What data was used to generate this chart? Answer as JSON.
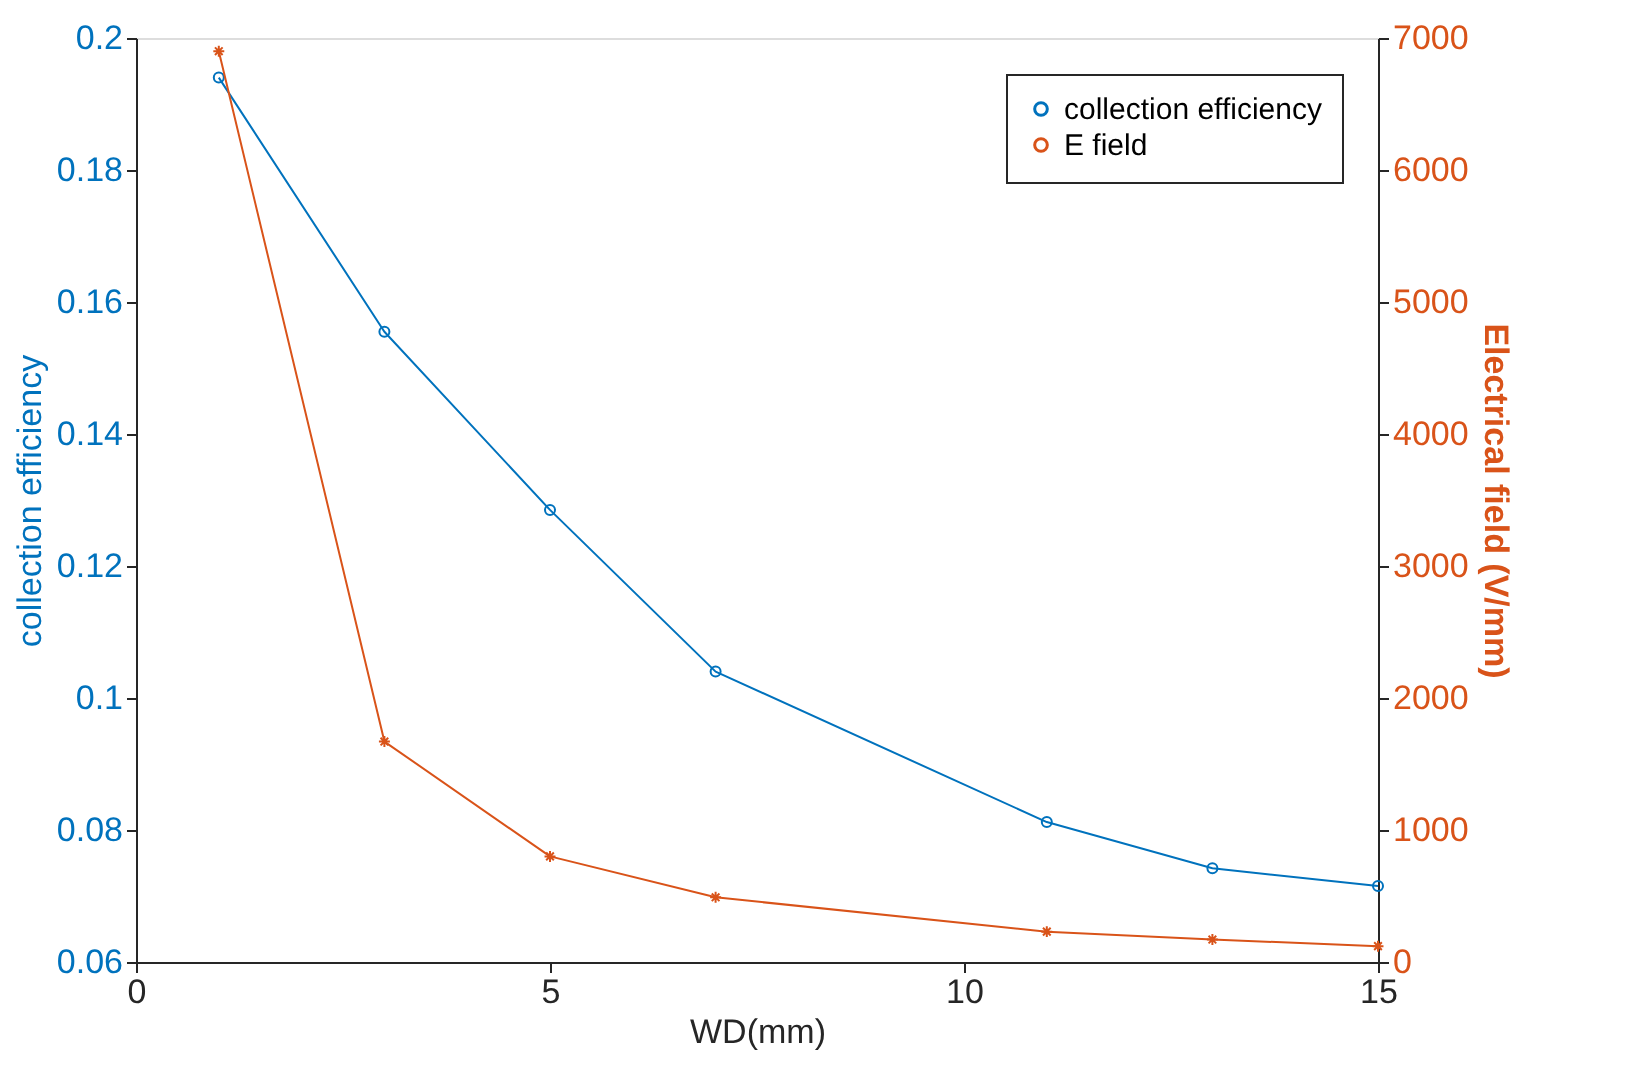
{
  "chart_data": {
    "type": "line",
    "xlabel": "WD(mm)",
    "ylabel": "collection efficiency",
    "y2label": "Electrical field (V/mm)",
    "x": [
      1,
      3,
      5,
      7,
      11,
      13,
      15
    ],
    "series": [
      {
        "name": "collection efficiency",
        "color": "#0072bd",
        "marker": "circle",
        "values": [
          0.194,
          0.1555,
          0.1285,
          0.104,
          0.0812,
          0.0742,
          0.0715
        ]
      },
      {
        "name": "E field",
        "color": "#d95319",
        "marker": "cross",
        "axis": "y2",
        "values": [
          6900,
          1670,
          800,
          490,
          230,
          170,
          120
        ]
      }
    ],
    "xlim": [
      0,
      15
    ],
    "xticks": [
      0,
      5,
      10,
      15
    ],
    "ylim": [
      0.06,
      0.2
    ],
    "yticks": [
      0.06,
      0.08,
      0.1,
      0.12,
      0.14,
      0.16,
      0.18,
      0.2
    ],
    "y2lim": [
      0,
      7000
    ],
    "y2ticks": [
      0,
      1000,
      2000,
      3000,
      4000,
      5000,
      6000,
      7000
    ],
    "grid": false,
    "legend": "top right",
    "line_style": "solid"
  }
}
